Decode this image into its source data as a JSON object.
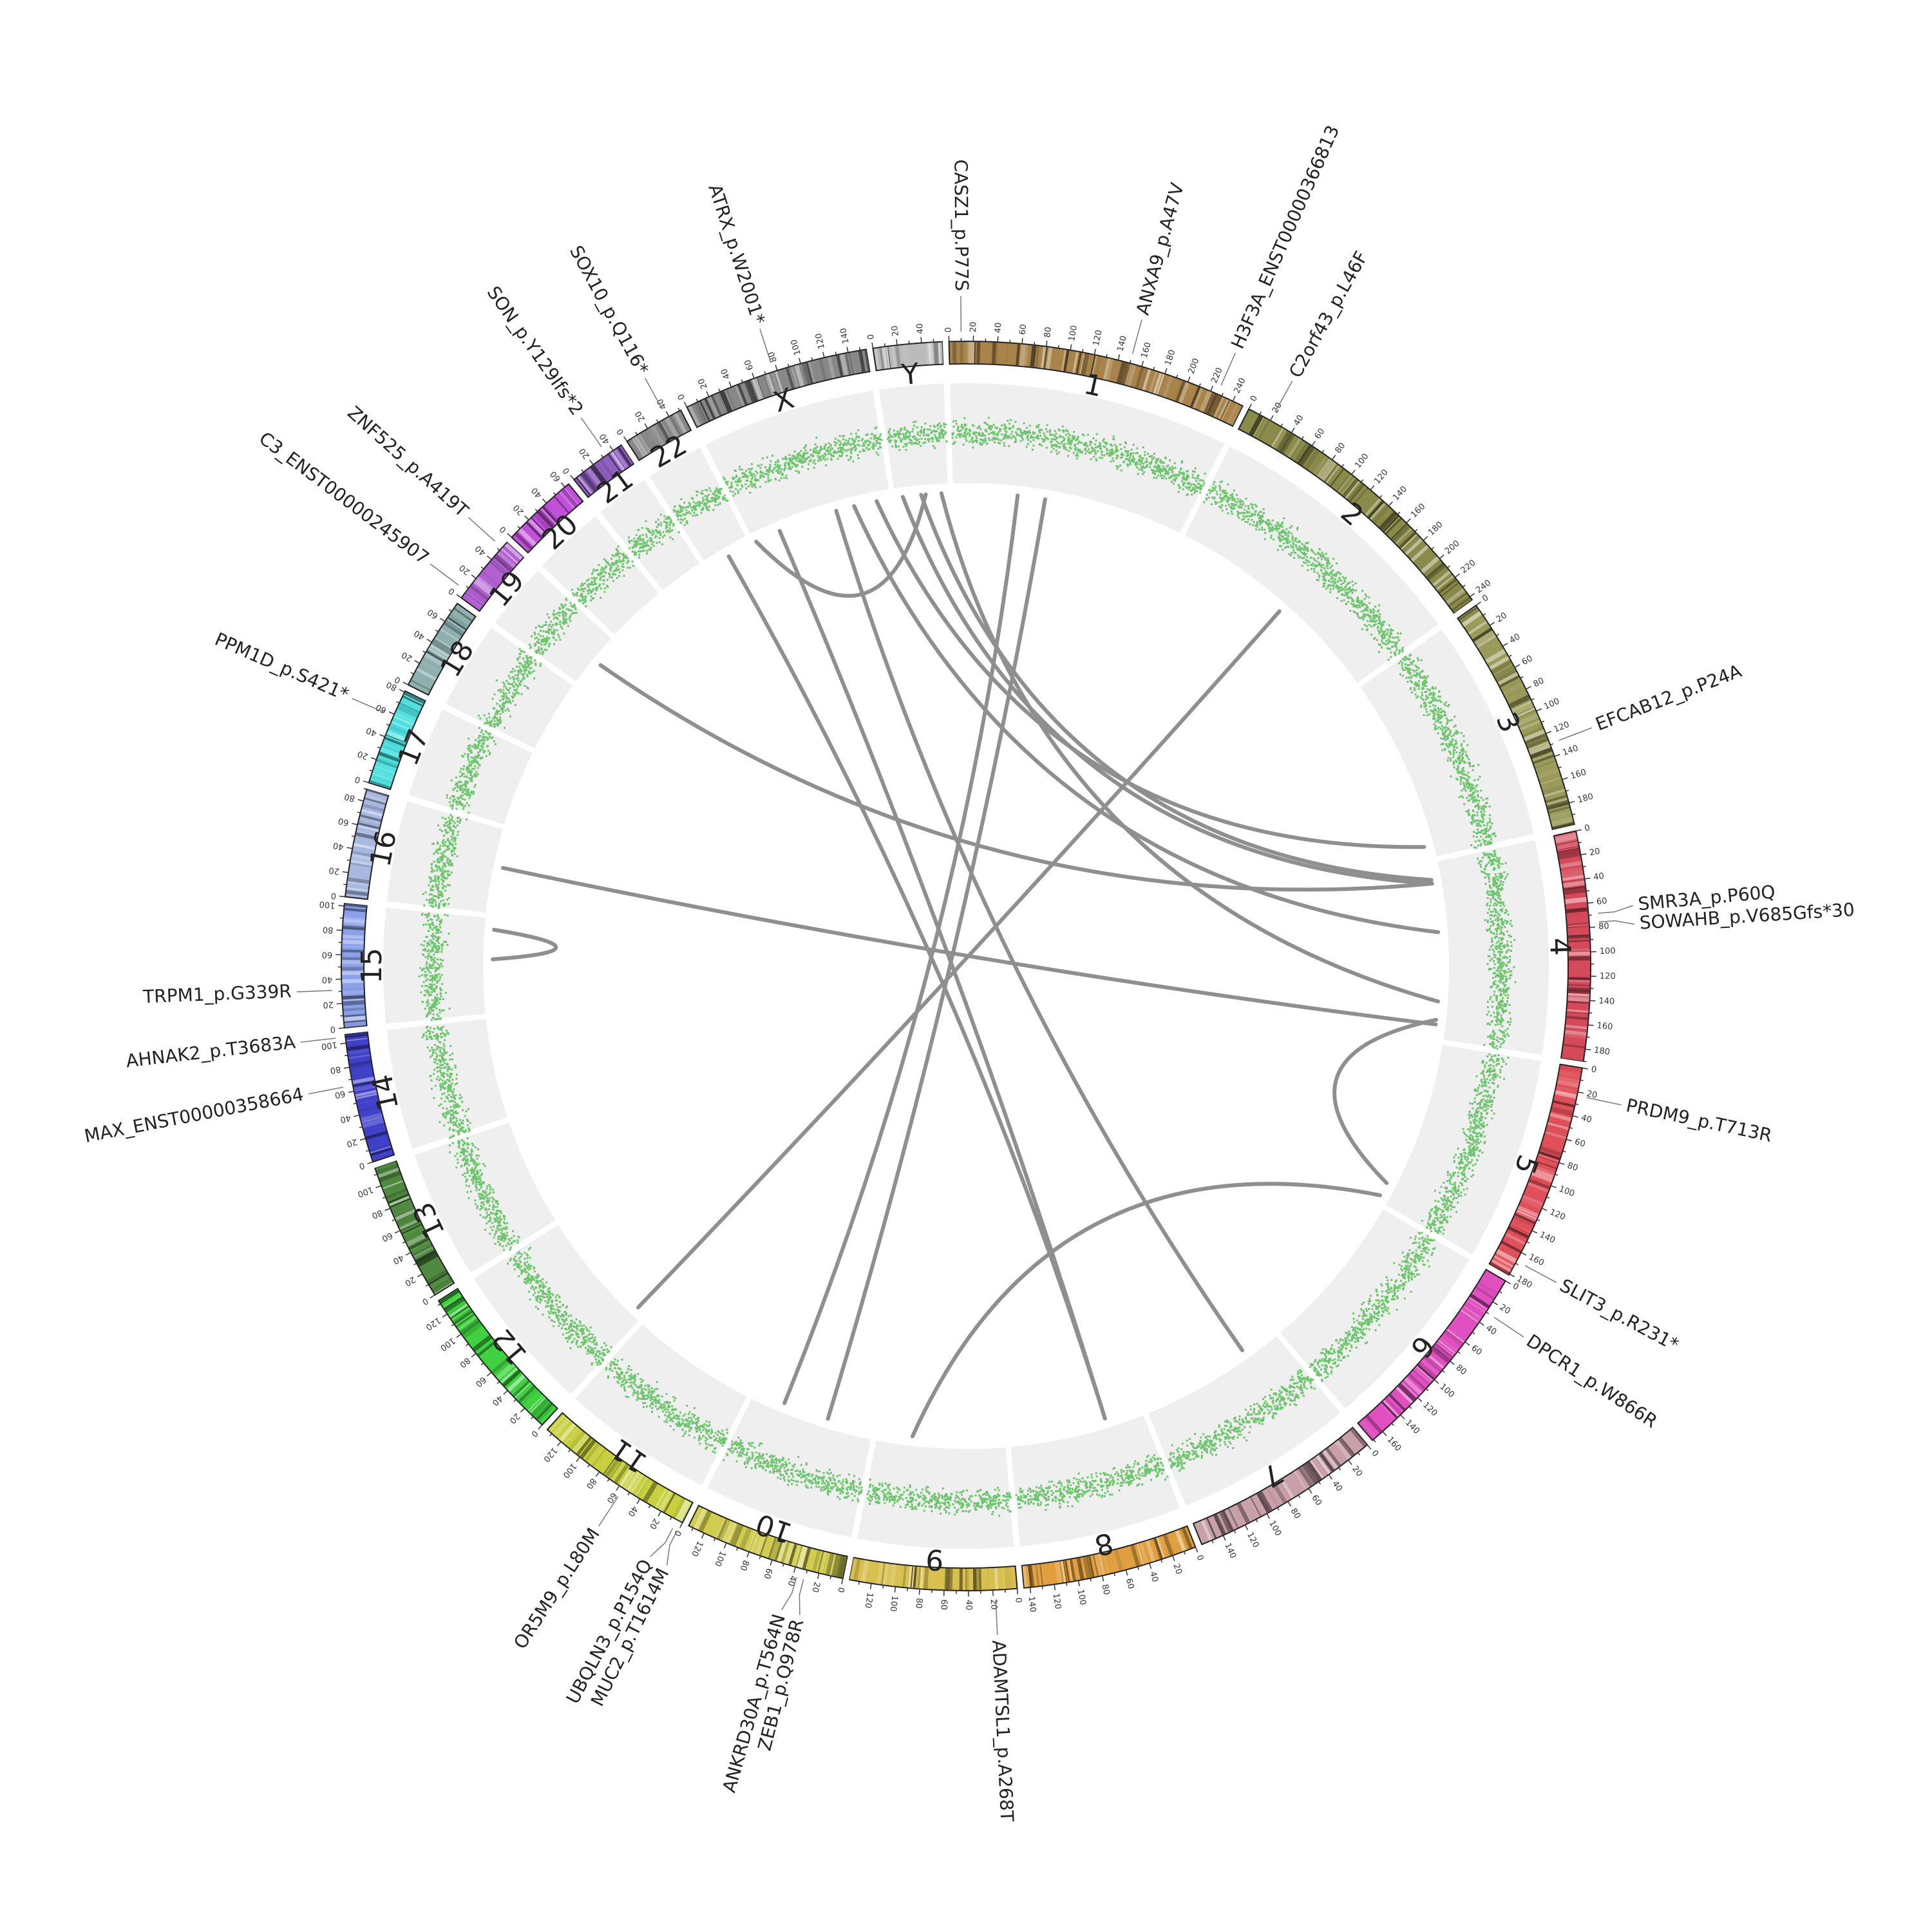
{
  "chart_data": {
    "type": "circos",
    "center_offset": [
      0,
      0
    ],
    "chromosomes": [
      {
        "name": "1",
        "length": 249,
        "color": "#a8834a",
        "labels": [
          0,
          20,
          40,
          60,
          80,
          100,
          120,
          140,
          160,
          180,
          200,
          220,
          240
        ]
      },
      {
        "name": "2",
        "length": 243,
        "color": "#8a8a4a",
        "labels": [
          0,
          20,
          40,
          60,
          80,
          100,
          120,
          140,
          160,
          180,
          200,
          220,
          240
        ]
      },
      {
        "name": "3",
        "length": 198,
        "color": "#9a9a5a",
        "labels": [
          0,
          20,
          40,
          60,
          80,
          100,
          120,
          140,
          160,
          180
        ]
      },
      {
        "name": "4",
        "length": 190,
        "color": "#d44a5a",
        "labels": [
          0,
          20,
          40,
          60,
          80,
          100,
          120,
          140,
          160,
          180
        ]
      },
      {
        "name": "5",
        "length": 181,
        "color": "#e0505a",
        "labels": [
          0,
          20,
          40,
          60,
          80,
          100,
          120,
          140,
          160,
          180
        ]
      },
      {
        "name": "6",
        "length": 171,
        "color": "#e050c0",
        "labels": [
          0,
          20,
          40,
          60,
          80,
          100,
          120,
          140,
          160
        ]
      },
      {
        "name": "7",
        "length": 159,
        "color": "#c8a0a8",
        "labels": [
          0,
          20,
          40,
          60,
          80,
          100,
          120,
          140
        ]
      },
      {
        "name": "8",
        "length": 145,
        "color": "#e0a040",
        "labels": [
          0,
          20,
          40,
          60,
          80,
          100,
          120,
          140
        ]
      },
      {
        "name": "9",
        "length": 138,
        "color": "#d8c050",
        "labels": [
          0,
          20,
          40,
          60,
          80,
          100,
          120
        ]
      },
      {
        "name": "10",
        "length": 134,
        "color": "#d0cc50",
        "labels": [
          0,
          20,
          40,
          60,
          80,
          100,
          120
        ]
      },
      {
        "name": "11",
        "length": 135,
        "color": "#c8d040",
        "labels": [
          0,
          20,
          40,
          60,
          80,
          100,
          120
        ]
      },
      {
        "name": "12",
        "length": 133,
        "color": "#40d040",
        "labels": [
          0,
          20,
          40,
          60,
          80,
          100,
          120
        ]
      },
      {
        "name": "13",
        "length": 115,
        "color": "#508a40",
        "labels": [
          0,
          20,
          40,
          60,
          80,
          100
        ]
      },
      {
        "name": "14",
        "length": 107,
        "color": "#4040c8",
        "labels": [
          0,
          20,
          40,
          60,
          80,
          100
        ]
      },
      {
        "name": "15",
        "length": 102,
        "color": "#8aa0e8",
        "labels": [
          0,
          20,
          40,
          60,
          80,
          100
        ]
      },
      {
        "name": "16",
        "length": 90,
        "color": "#a8b8e0",
        "labels": [
          0,
          20,
          40,
          60,
          80
        ]
      },
      {
        "name": "17",
        "length": 81,
        "color": "#50e0e0",
        "labels": [
          0,
          20,
          40,
          60,
          80
        ]
      },
      {
        "name": "18",
        "length": 78,
        "color": "#90b0b0",
        "labels": [
          0,
          20,
          40,
          60
        ]
      },
      {
        "name": "19",
        "length": 59,
        "color": "#b060d0",
        "labels": [
          0,
          20,
          40
        ]
      },
      {
        "name": "20",
        "length": 64,
        "color": "#c050d8",
        "labels": [
          0,
          20,
          40,
          60
        ]
      },
      {
        "name": "21",
        "length": 48,
        "color": "#9060c0",
        "labels": [
          0,
          20,
          40
        ]
      },
      {
        "name": "22",
        "length": 51,
        "color": "#888888",
        "labels": [
          0,
          20,
          40
        ]
      },
      {
        "name": "X",
        "length": 155,
        "color": "#888888",
        "labels": [
          0,
          20,
          40,
          60,
          80,
          100,
          120,
          140
        ]
      },
      {
        "name": "Y",
        "length": 57,
        "color": "#bbbbbb",
        "labels": [
          0,
          20,
          40
        ]
      }
    ],
    "mutations": [
      {
        "label": "CASZ1_p.P77S",
        "chr": "1",
        "pos": 10
      },
      {
        "label": "ANXA9_p.A47V",
        "chr": "1",
        "pos": 150
      },
      {
        "label": "H3F3A_ENST00000366813",
        "chr": "1",
        "pos": 226
      },
      {
        "label": "C2orf43_p.L46F",
        "chr": "2",
        "pos": 20
      },
      {
        "label": "EFCAB12_p.P24A",
        "chr": "3",
        "pos": 129
      },
      {
        "label": "SMR3A_p.P60Q",
        "chr": "4",
        "pos": 69
      },
      {
        "label": "SOWAHB_p.V685Gfs*30",
        "chr": "4",
        "pos": 76
      },
      {
        "label": "PRDM9_p.T713R",
        "chr": "5",
        "pos": 23
      },
      {
        "label": "SLIT3_p.R231*",
        "chr": "5",
        "pos": 168
      },
      {
        "label": "DPCR1_p.W866R",
        "chr": "6",
        "pos": 30
      },
      {
        "label": "ADAMTSL1_p.A268T",
        "chr": "9",
        "pos": 18
      },
      {
        "label": "ANKRD30A_p.T564N",
        "chr": "10",
        "pos": 37
      },
      {
        "label": "ZEB1_p.Q978R",
        "chr": "10",
        "pos": 31
      },
      {
        "label": "MUC2_p.T1614M",
        "chr": "11",
        "pos": 1
      },
      {
        "label": "UBQLN3_p.P154Q",
        "chr": "11",
        "pos": 5
      },
      {
        "label": "OR5M9_p.L80M",
        "chr": "11",
        "pos": 56
      },
      {
        "label": "MAX_ENST00000358664",
        "chr": "14",
        "pos": 65
      },
      {
        "label": "AHNAK2_p.T3683A",
        "chr": "14",
        "pos": 105
      },
      {
        "label": "TRPM1_p.G339R",
        "chr": "15",
        "pos": 31
      },
      {
        "label": "PPM1D_p.S421*",
        "chr": "17",
        "pos": 58
      },
      {
        "label": "C3_ENST00000245907",
        "chr": "19",
        "pos": 7
      },
      {
        "label": "ZNF525_p.A419T",
        "chr": "19",
        "pos": 53
      },
      {
        "label": "SON_p.Y129Ifs*2",
        "chr": "21",
        "pos": 34
      },
      {
        "label": "SOX10_p.Q116*",
        "chr": "22",
        "pos": 38
      },
      {
        "label": "ATRX_p.W2001*",
        "chr": "X",
        "pos": 77
      }
    ],
    "links": [
      {
        "from": [
          "X",
          115
        ],
        "to": [
          "4",
          75
        ]
      },
      {
        "from": [
          "X",
          95
        ],
        "to": [
          "7",
          38
        ]
      },
      {
        "from": [
          "X",
          30
        ],
        "to": [
          "8",
          40
        ]
      },
      {
        "from": [
          "Y",
          8
        ],
        "to": [
          "4",
          22
        ]
      },
      {
        "from": [
          "Y",
          28
        ],
        "to": [
          "4",
          18
        ]
      },
      {
        "from": [
          "Y",
          33
        ],
        "to": [
          "X",
          2
        ]
      },
      {
        "from": [
          "Y",
          50
        ],
        "to": [
          "4",
          150
        ]
      },
      {
        "from": [
          "1",
          70
        ],
        "to": [
          "10",
          100
        ]
      },
      {
        "from": [
          "1",
          100
        ],
        "to": [
          "10",
          50
        ]
      },
      {
        "from": [
          "2",
          130
        ],
        "to": [
          "12",
          10
        ]
      },
      {
        "from": [
          "22",
          25
        ],
        "to": [
          "8",
          40
        ]
      },
      {
        "from": [
          "19",
          30
        ],
        "to": [
          "4",
          22
        ]
      },
      {
        "from": [
          "16",
          50
        ],
        "to": [
          "4",
          175
        ]
      },
      {
        "from": [
          "15",
          90
        ],
        "to": [
          "15",
          58
        ]
      },
      {
        "from": [
          "4",
          170
        ],
        "to": [
          "5",
          160
        ]
      },
      {
        "from": [
          "5",
          175
        ],
        "to": [
          "9",
          100
        ]
      },
      {
        "from": [
          "X",
          140
        ],
        "to": [
          "3",
          185
        ]
      }
    ]
  }
}
